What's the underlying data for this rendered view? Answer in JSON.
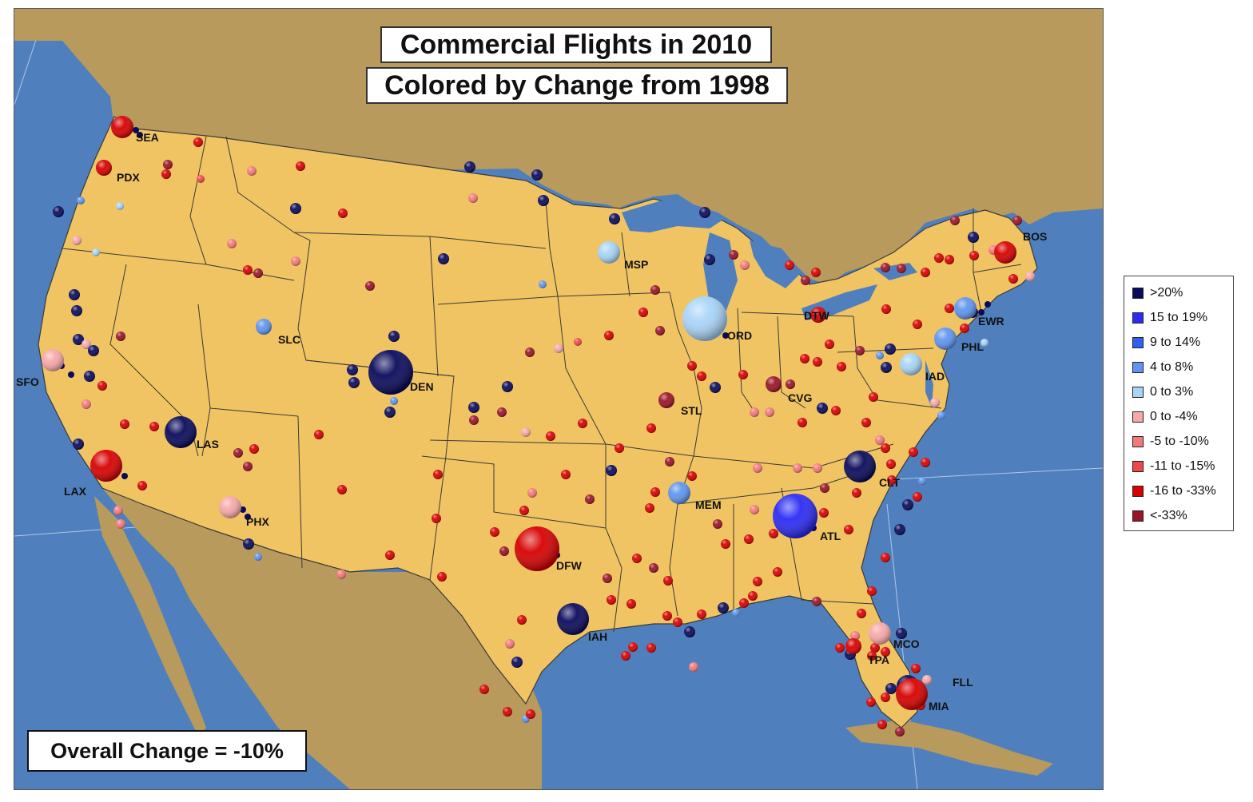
{
  "title": "Commercial Flights in 2010",
  "subtitle": "Colored by Change from 1998",
  "overall": "Overall Change = -10%",
  "colors": {
    "ocean": "#4f80bd",
    "land_foreign": "#b89a5c",
    "land_us": "#f0c462",
    "border": "#3a3a3a"
  },
  "legend": [
    {
      "label": ">20%",
      "color": "#0a0a5c"
    },
    {
      "label": "15 to 19%",
      "color": "#2b2bf5"
    },
    {
      "label": "9 to 14%",
      "color": "#3060f0"
    },
    {
      "label": "4 to 8%",
      "color": "#5f95f0"
    },
    {
      "label": "0 to 3%",
      "color": "#a8d4f8"
    },
    {
      "label": "0 to -4%",
      "color": "#f8a8a8"
    },
    {
      "label": "-5 to -10%",
      "color": "#f47a7a"
    },
    {
      "label": "-11 to -15%",
      "color": "#f04848"
    },
    {
      "label": "-16 to -33%",
      "color": "#d80000"
    },
    {
      "label": "<-33%",
      "color": "#9a1428"
    }
  ],
  "airports": [
    {
      "code": "SEA",
      "cat": 8,
      "size": 3
    },
    {
      "code": "PDX",
      "cat": 8,
      "size": 2
    },
    {
      "code": "SFO",
      "cat": 5,
      "size": 3
    },
    {
      "code": "LAX",
      "cat": 8,
      "size": 4
    },
    {
      "code": "LAS",
      "cat": 0,
      "size": 4
    },
    {
      "code": "PHX",
      "cat": 5,
      "size": 3
    },
    {
      "code": "SLC",
      "cat": 3,
      "size": 2
    },
    {
      "code": "DEN",
      "cat": 0,
      "size": 5
    },
    {
      "code": "DFW",
      "cat": 8,
      "size": 5
    },
    {
      "code": "IAH",
      "cat": 0,
      "size": 4
    },
    {
      "code": "MSP",
      "cat": 4,
      "size": 3
    },
    {
      "code": "ORD",
      "cat": 4,
      "size": 5
    },
    {
      "code": "STL",
      "cat": 9,
      "size": 2
    },
    {
      "code": "MEM",
      "cat": 3,
      "size": 3
    },
    {
      "code": "DTW",
      "cat": 8,
      "size": 2
    },
    {
      "code": "CVG",
      "cat": 9,
      "size": 2
    },
    {
      "code": "ATL",
      "cat": 1,
      "size": 5
    },
    {
      "code": "CLT",
      "cat": 0,
      "size": 4
    },
    {
      "code": "IAD",
      "cat": 4,
      "size": 3
    },
    {
      "code": "PHL",
      "cat": 3,
      "size": 3
    },
    {
      "code": "EWR",
      "cat": 3,
      "size": 3
    },
    {
      "code": "BOS",
      "cat": 8,
      "size": 3
    },
    {
      "code": "MCO",
      "cat": 5,
      "size": 3
    },
    {
      "code": "TPA",
      "cat": 8,
      "size": 2
    },
    {
      "code": "FLL",
      "cat": 0,
      "size": 3
    },
    {
      "code": "MIA",
      "cat": 8,
      "size": 4
    }
  ]
}
